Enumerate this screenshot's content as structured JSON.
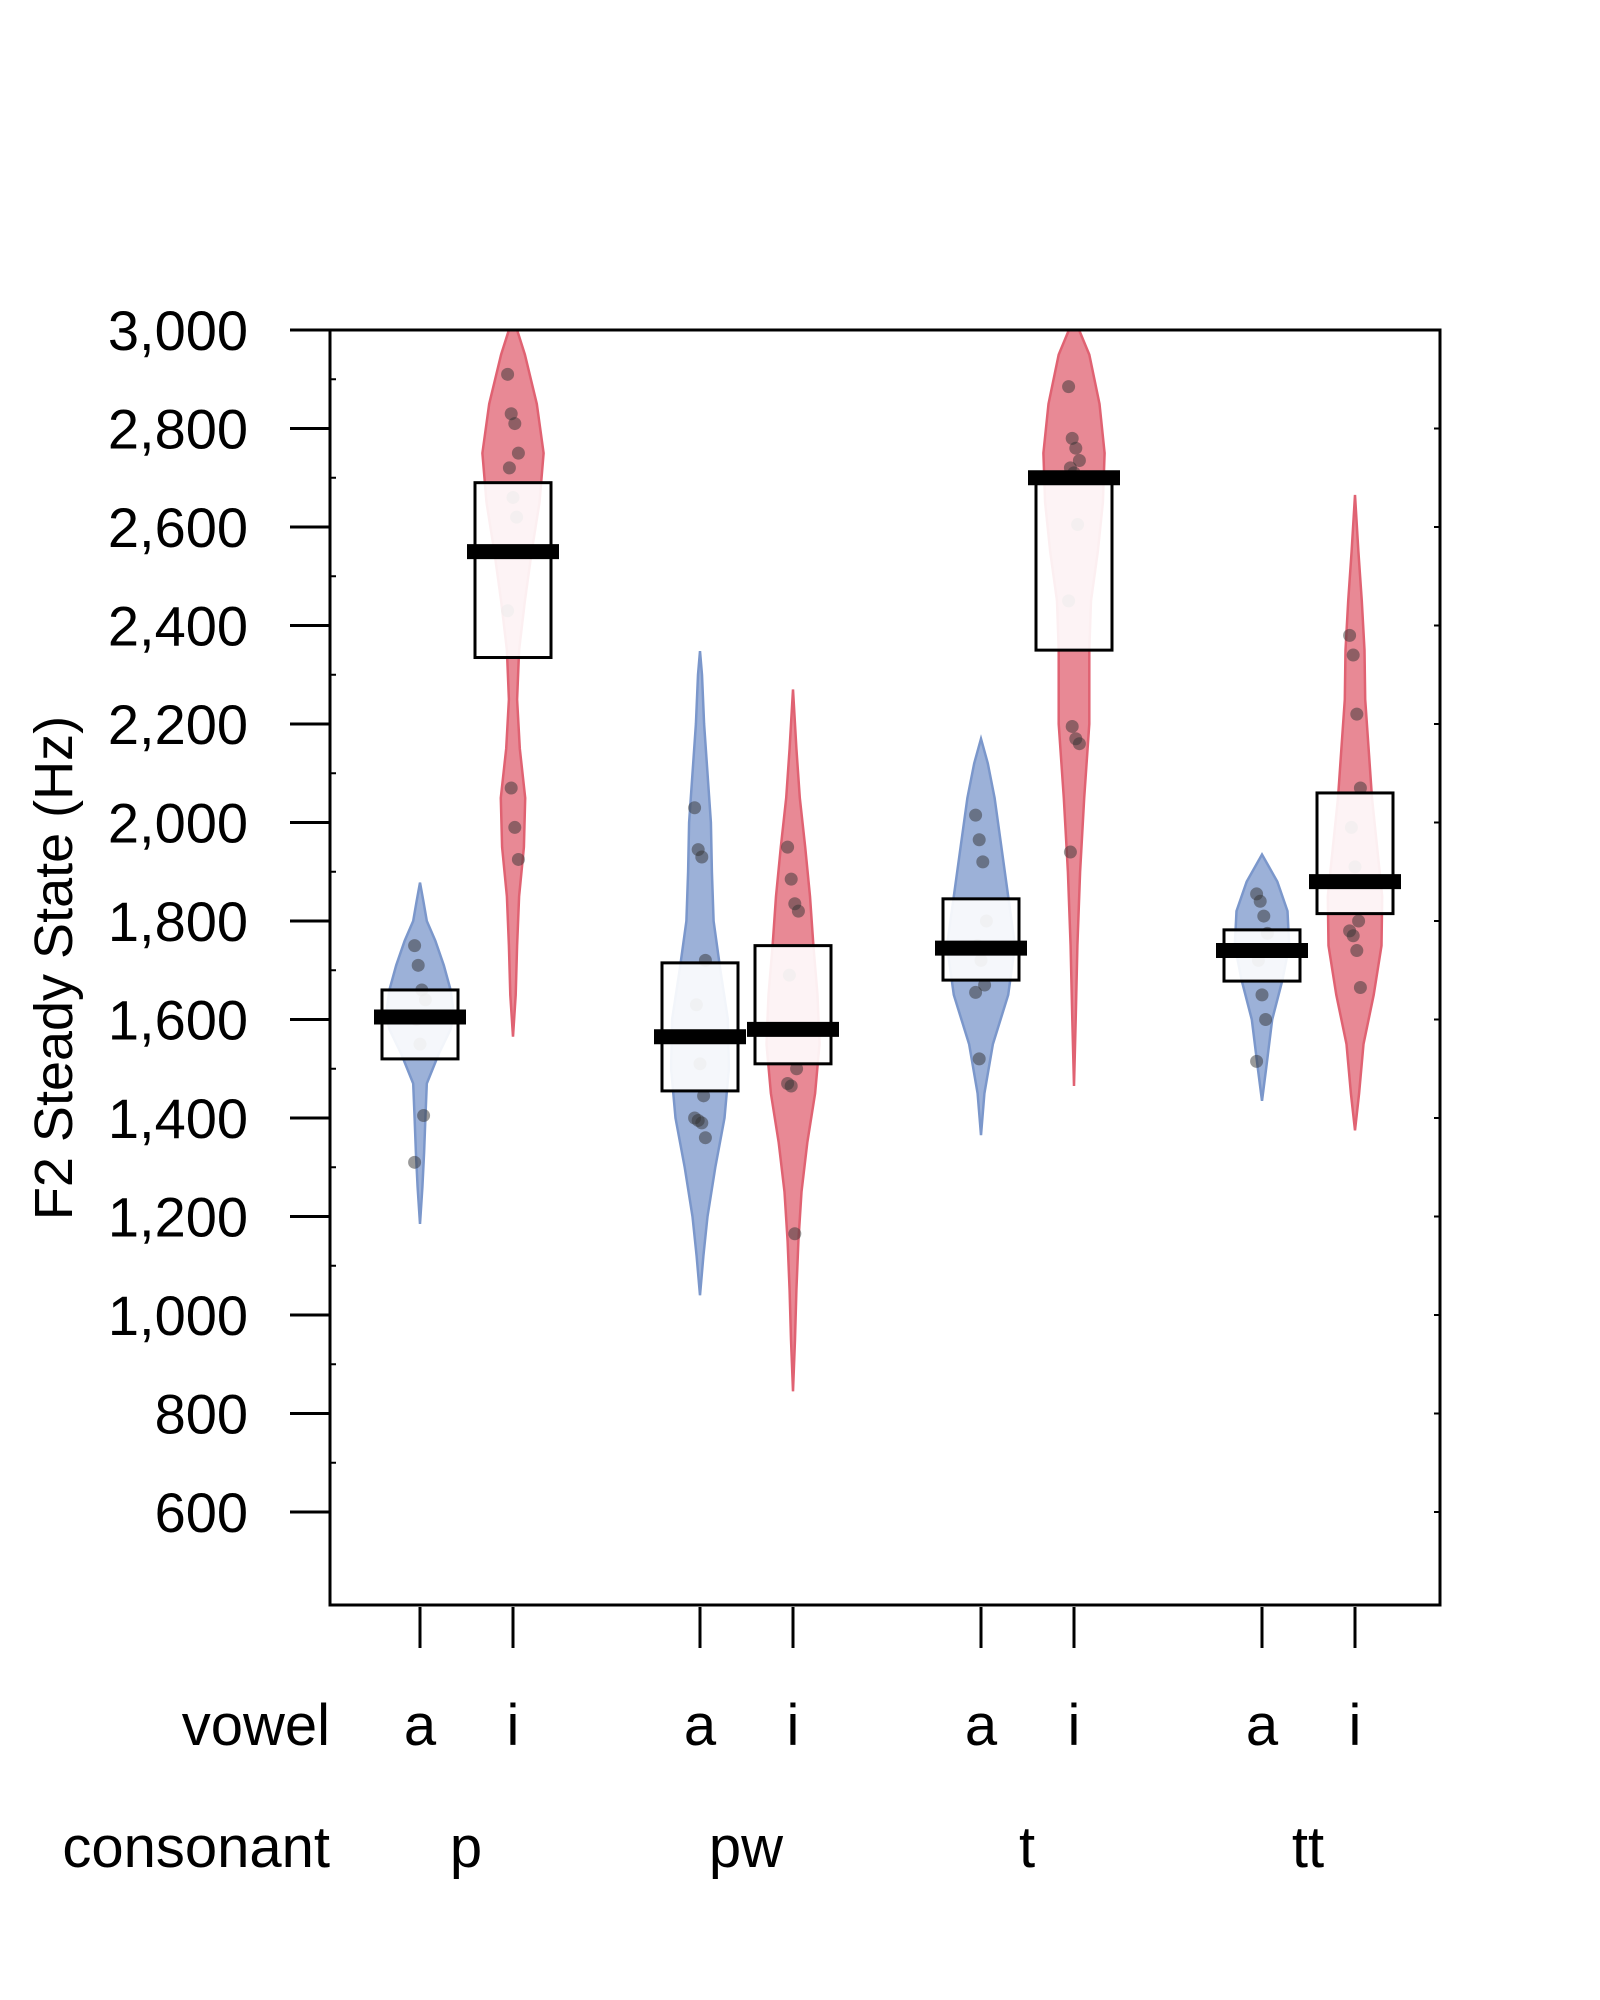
{
  "chart_data": {
    "type": "violin",
    "title": "",
    "ylabel": "F2 Steady State (Hz)",
    "ylim": [
      500,
      3100
    ],
    "yticks": [
      600,
      800,
      1000,
      1200,
      1400,
      1600,
      1800,
      2000,
      2200,
      2400,
      2600,
      2800,
      3000
    ],
    "ytick_labels": [
      "600",
      "800",
      "1,000",
      "1,200",
      "1,400",
      "1,600",
      "1,800",
      "2,000",
      "2,200",
      "2,400",
      "2,600",
      "2,800",
      "3,000"
    ],
    "factor_labels": [
      "vowel",
      "consonant"
    ],
    "colors": {
      "a": "#7b97cb",
      "i": "#e06272"
    },
    "groups": [
      {
        "consonant": "p",
        "vowel": "a",
        "mean": 1605,
        "box": [
          1520,
          1660
        ],
        "points": [
          1750,
          1710,
          1660,
          1640,
          1600,
          1550,
          1405,
          1310
        ],
        "violin": [
          [
            1185,
            0
          ],
          [
            1260,
            0.07
          ],
          [
            1330,
            0.12
          ],
          [
            1400,
            0.16
          ],
          [
            1470,
            0.2
          ],
          [
            1530,
            0.55
          ],
          [
            1580,
            0.9
          ],
          [
            1610,
            1.0
          ],
          [
            1660,
            0.9
          ],
          [
            1710,
            0.7
          ],
          [
            1760,
            0.45
          ],
          [
            1800,
            0.2
          ],
          [
            1840,
            0.1
          ],
          [
            1878,
            0
          ]
        ]
      },
      {
        "consonant": "p",
        "vowel": "i",
        "mean": 2550,
        "box": [
          2335,
          2690
        ],
        "points": [
          2910,
          2830,
          2810,
          2750,
          2720,
          2660,
          2620,
          2430,
          2070,
          1990,
          1925
        ],
        "violin": [
          [
            1565,
            0
          ],
          [
            1650,
            0.08
          ],
          [
            1750,
            0.12
          ],
          [
            1850,
            0.18
          ],
          [
            1950,
            0.32
          ],
          [
            2050,
            0.36
          ],
          [
            2150,
            0.2
          ],
          [
            2250,
            0.12
          ],
          [
            2350,
            0.18
          ],
          [
            2450,
            0.35
          ],
          [
            2550,
            0.55
          ],
          [
            2650,
            0.78
          ],
          [
            2750,
            0.9
          ],
          [
            2850,
            0.7
          ],
          [
            2950,
            0.35
          ],
          [
            3050,
            0.12
          ],
          [
            3100,
            0.05
          ]
        ]
      },
      {
        "consonant": "pw",
        "vowel": "a",
        "mean": 1565,
        "box": [
          1455,
          1715
        ],
        "points": [
          2030,
          1945,
          1930,
          1720,
          1630,
          1510,
          1445,
          1400,
          1395,
          1390,
          1360
        ],
        "violin": [
          [
            1040,
            0
          ],
          [
            1120,
            0.1
          ],
          [
            1200,
            0.22
          ],
          [
            1300,
            0.45
          ],
          [
            1400,
            0.72
          ],
          [
            1500,
            0.85
          ],
          [
            1600,
            0.82
          ],
          [
            1700,
            0.6
          ],
          [
            1800,
            0.4
          ],
          [
            1900,
            0.35
          ],
          [
            2000,
            0.32
          ],
          [
            2100,
            0.22
          ],
          [
            2200,
            0.12
          ],
          [
            2300,
            0.06
          ],
          [
            2348,
            0
          ]
        ]
      },
      {
        "consonant": "pw",
        "vowel": "i",
        "mean": 1580,
        "box": [
          1510,
          1750
        ],
        "points": [
          1950,
          1885,
          1835,
          1820,
          1690,
          1580,
          1500,
          1470,
          1465,
          1165
        ],
        "violin": [
          [
            845,
            0
          ],
          [
            950,
            0.06
          ],
          [
            1050,
            0.1
          ],
          [
            1150,
            0.16
          ],
          [
            1250,
            0.25
          ],
          [
            1350,
            0.42
          ],
          [
            1450,
            0.65
          ],
          [
            1550,
            0.78
          ],
          [
            1650,
            0.72
          ],
          [
            1750,
            0.6
          ],
          [
            1850,
            0.5
          ],
          [
            1950,
            0.36
          ],
          [
            2050,
            0.2
          ],
          [
            2150,
            0.1
          ],
          [
            2270,
            0
          ]
        ]
      },
      {
        "consonant": "t",
        "vowel": "a",
        "mean": 1745,
        "box": [
          1680,
          1845
        ],
        "points": [
          2015,
          1965,
          1920,
          1800,
          1750,
          1720,
          1670,
          1655,
          1520
        ],
        "violin": [
          [
            1365,
            0
          ],
          [
            1450,
            0.1
          ],
          [
            1550,
            0.35
          ],
          [
            1650,
            0.8
          ],
          [
            1750,
            1.0
          ],
          [
            1850,
            0.8
          ],
          [
            1950,
            0.6
          ],
          [
            2050,
            0.4
          ],
          [
            2120,
            0.2
          ],
          [
            2170,
            0
          ]
        ]
      },
      {
        "consonant": "t",
        "vowel": "i",
        "mean": 2700,
        "box": [
          2350,
          2710
        ],
        "points": [
          2885,
          2780,
          2760,
          2735,
          2720,
          2710,
          2605,
          2450,
          2195,
          2170,
          2160,
          1940
        ],
        "violin": [
          [
            1465,
            0
          ],
          [
            1600,
            0.05
          ],
          [
            1750,
            0.1
          ],
          [
            1900,
            0.18
          ],
          [
            2050,
            0.3
          ],
          [
            2200,
            0.45
          ],
          [
            2350,
            0.45
          ],
          [
            2450,
            0.5
          ],
          [
            2550,
            0.7
          ],
          [
            2650,
            0.85
          ],
          [
            2750,
            0.9
          ],
          [
            2850,
            0.75
          ],
          [
            2950,
            0.45
          ],
          [
            3050,
            0.15
          ],
          [
            3100,
            0.05
          ]
        ]
      },
      {
        "consonant": "tt",
        "vowel": "a",
        "mean": 1740,
        "box": [
          1678,
          1782
        ],
        "points": [
          1855,
          1840,
          1810,
          1775,
          1720,
          1650,
          1600,
          1515
        ],
        "violin": [
          [
            1435,
            0
          ],
          [
            1500,
            0.12
          ],
          [
            1600,
            0.3
          ],
          [
            1680,
            0.6
          ],
          [
            1750,
            0.8
          ],
          [
            1820,
            0.75
          ],
          [
            1880,
            0.45
          ],
          [
            1935,
            0
          ]
        ]
      },
      {
        "consonant": "tt",
        "vowel": "i",
        "mean": 1880,
        "box": [
          1815,
          2060
        ],
        "points": [
          2380,
          2340,
          2220,
          2070,
          1990,
          1910,
          1800,
          1780,
          1770,
          1740,
          1665
        ],
        "violin": [
          [
            1375,
            0
          ],
          [
            1450,
            0.12
          ],
          [
            1550,
            0.25
          ],
          [
            1650,
            0.55
          ],
          [
            1750,
            0.78
          ],
          [
            1850,
            0.8
          ],
          [
            1950,
            0.65
          ],
          [
            2050,
            0.5
          ],
          [
            2150,
            0.4
          ],
          [
            2250,
            0.3
          ],
          [
            2350,
            0.28
          ],
          [
            2450,
            0.2
          ],
          [
            2550,
            0.1
          ],
          [
            2665,
            0
          ]
        ]
      }
    ]
  }
}
